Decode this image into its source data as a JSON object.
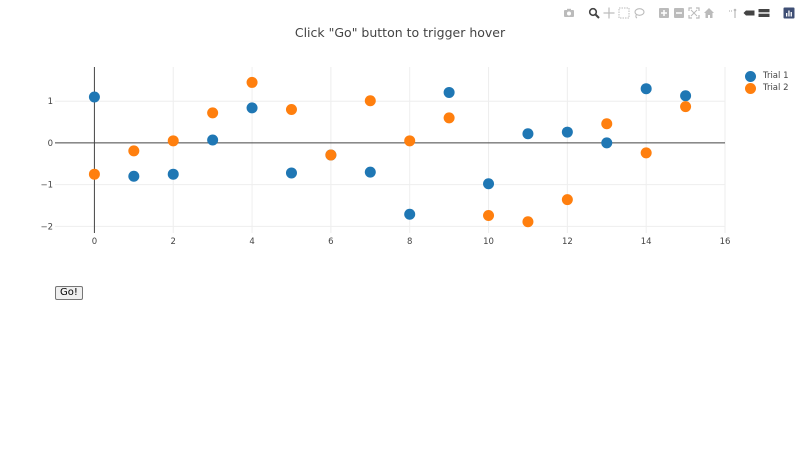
{
  "modebar": {
    "buttons": [
      {
        "name": "camera-icon",
        "title": "Download plot as a png"
      },
      {
        "name": "zoom-icon",
        "title": "Zoom",
        "active": true
      },
      {
        "name": "pan-icon",
        "title": "Pan"
      },
      {
        "name": "box-select-icon",
        "title": "Box Select"
      },
      {
        "name": "lasso-select-icon",
        "title": "Lasso Select"
      },
      {
        "name": "zoom-in-icon",
        "title": "Zoom in"
      },
      {
        "name": "zoom-out-icon",
        "title": "Zoom out"
      },
      {
        "name": "autoscale-icon",
        "title": "Autoscale"
      },
      {
        "name": "reset-axes-icon",
        "title": "Reset axes"
      },
      {
        "name": "spike-lines-icon",
        "title": "Toggle Spike Lines"
      },
      {
        "name": "hover-closest-icon",
        "title": "Show closest data on hover"
      },
      {
        "name": "hover-compare-icon",
        "title": "Compare data on hover"
      },
      {
        "name": "plotly-logo-icon",
        "title": "Produced with Plotly"
      }
    ]
  },
  "go_button": {
    "label": "Go!"
  },
  "colors": {
    "trial1": "#1f77b4",
    "trial2": "#ff7f0e",
    "grid": "#eeeeee",
    "zeroline": "#444444",
    "text": "#444444"
  },
  "chart_data": {
    "type": "scatter",
    "title": "Click \"Go\" button to trigger hover",
    "xlabel": "",
    "ylabel": "",
    "xlim": [
      -1,
      16
    ],
    "ylim": [
      -2.16,
      1.82
    ],
    "xticks": [
      0,
      2,
      4,
      6,
      8,
      10,
      12,
      14,
      16
    ],
    "yticks": [
      1,
      0,
      -1,
      -2
    ],
    "ytick_labels": [
      "1",
      "0",
      "−1",
      "−2"
    ],
    "grid": true,
    "legend_position": "right",
    "x": [
      0,
      1,
      2,
      3,
      4,
      5,
      6,
      7,
      8,
      9,
      10,
      11,
      12,
      13,
      14,
      15
    ],
    "series": [
      {
        "name": "Trial 1",
        "color": "#1f77b4",
        "values": [
          1.1,
          -0.8,
          -0.75,
          0.07,
          0.84,
          -0.72,
          -0.29,
          -0.7,
          -1.71,
          1.21,
          -0.98,
          0.22,
          0.26,
          0.0,
          1.3,
          1.13
        ]
      },
      {
        "name": "Trial 2",
        "color": "#ff7f0e",
        "values": [
          -0.75,
          -0.19,
          0.05,
          0.72,
          1.45,
          0.8,
          -0.29,
          1.01,
          0.05,
          0.6,
          -1.74,
          -1.89,
          -1.36,
          0.46,
          -0.24,
          0.87
        ]
      }
    ]
  }
}
